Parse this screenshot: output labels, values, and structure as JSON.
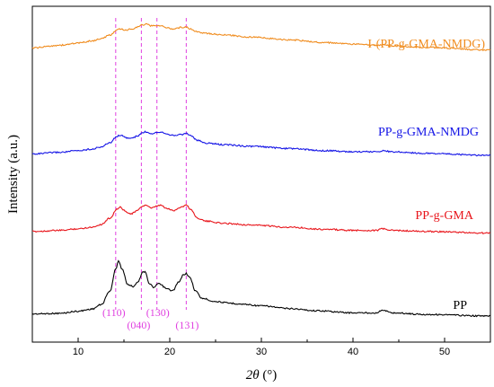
{
  "chart_data": {
    "type": "line",
    "xlabel": "2θ (°)",
    "ylabel": "Intensity (a.u.)",
    "xlim": [
      5,
      55
    ],
    "x_ticks": [
      "10",
      "20",
      "30",
      "40",
      "50"
    ],
    "grid": false,
    "series": [
      {
        "name": "PP",
        "color": "#000000",
        "points": [
          [
            5,
            0.45
          ],
          [
            8,
            0.5
          ],
          [
            10,
            0.7
          ],
          [
            11.5,
            0.9
          ],
          [
            12.5,
            1.3
          ],
          [
            13.5,
            2.6
          ],
          [
            14.1,
            4.6
          ],
          [
            14.4,
            5.4
          ],
          [
            14.8,
            4.6
          ],
          [
            15.4,
            3.2
          ],
          [
            16.0,
            3.0
          ],
          [
            16.6,
            3.5
          ],
          [
            17.0,
            4.3
          ],
          [
            17.3,
            4.4
          ],
          [
            17.8,
            3.2
          ],
          [
            18.3,
            2.9
          ],
          [
            18.8,
            3.3
          ],
          [
            19.1,
            3.1
          ],
          [
            19.6,
            2.8
          ],
          [
            20.3,
            2.6
          ],
          [
            21.0,
            3.4
          ],
          [
            21.5,
            4.1
          ],
          [
            21.8,
            4.2
          ],
          [
            22.2,
            3.8
          ],
          [
            22.8,
            2.6
          ],
          [
            23.5,
            1.9
          ],
          [
            25,
            1.6
          ],
          [
            26.5,
            1.45
          ],
          [
            28,
            1.35
          ],
          [
            30,
            1.2
          ],
          [
            33,
            0.95
          ],
          [
            36,
            0.75
          ],
          [
            40,
            0.55
          ],
          [
            42.5,
            0.55
          ],
          [
            43.3,
            0.8
          ],
          [
            44.2,
            0.55
          ],
          [
            48,
            0.4
          ],
          [
            55,
            0.25
          ]
        ]
      },
      {
        "name": "PP-g-GMA",
        "color": "#e8141a",
        "points": [
          [
            5,
            0.35
          ],
          [
            8,
            0.45
          ],
          [
            10,
            0.6
          ],
          [
            11.5,
            0.75
          ],
          [
            12.5,
            1.0
          ],
          [
            13.5,
            1.6
          ],
          [
            14.2,
            2.4
          ],
          [
            14.6,
            2.6
          ],
          [
            15.2,
            2.2
          ],
          [
            15.8,
            2.0
          ],
          [
            16.5,
            2.3
          ],
          [
            17.0,
            2.7
          ],
          [
            17.4,
            2.8
          ],
          [
            18.0,
            2.5
          ],
          [
            18.6,
            2.7
          ],
          [
            19.0,
            2.8
          ],
          [
            19.6,
            2.5
          ],
          [
            20.4,
            2.3
          ],
          [
            21.2,
            2.6
          ],
          [
            21.8,
            2.8
          ],
          [
            22.3,
            2.4
          ],
          [
            23.0,
            1.6
          ],
          [
            24.0,
            1.3
          ],
          [
            26,
            1.1
          ],
          [
            29,
            0.95
          ],
          [
            33,
            0.75
          ],
          [
            37,
            0.55
          ],
          [
            40,
            0.45
          ],
          [
            42.5,
            0.45
          ],
          [
            43.3,
            0.6
          ],
          [
            44.2,
            0.45
          ],
          [
            48,
            0.35
          ],
          [
            55,
            0.2
          ]
        ]
      },
      {
        "name": "PP-g-GMA-NMDG",
        "color": "#1414e6",
        "points": [
          [
            5,
            0.3
          ],
          [
            8,
            0.45
          ],
          [
            10,
            0.6
          ],
          [
            11.5,
            0.75
          ],
          [
            12.5,
            0.95
          ],
          [
            13.5,
            1.35
          ],
          [
            14.2,
            1.9
          ],
          [
            14.6,
            2.05
          ],
          [
            15.2,
            1.8
          ],
          [
            15.8,
            1.75
          ],
          [
            16.5,
            1.95
          ],
          [
            17.0,
            2.25
          ],
          [
            17.4,
            2.35
          ],
          [
            18.0,
            2.2
          ],
          [
            18.6,
            2.3
          ],
          [
            19.0,
            2.35
          ],
          [
            19.6,
            2.2
          ],
          [
            20.4,
            2.0
          ],
          [
            21.2,
            2.1
          ],
          [
            21.8,
            2.2
          ],
          [
            22.3,
            2.0
          ],
          [
            23.0,
            1.55
          ],
          [
            24.0,
            1.3
          ],
          [
            26,
            1.15
          ],
          [
            29,
            1.0
          ],
          [
            33,
            0.8
          ],
          [
            37,
            0.6
          ],
          [
            40,
            0.5
          ],
          [
            42.5,
            0.5
          ],
          [
            43.3,
            0.6
          ],
          [
            44.2,
            0.5
          ],
          [
            48,
            0.35
          ],
          [
            55,
            0.15
          ]
        ]
      },
      {
        "name": "I-(PP-g-GMA-NMDG)",
        "color": "#f08c1e",
        "points": [
          [
            5,
            0.3
          ],
          [
            8,
            0.55
          ],
          [
            10,
            0.75
          ],
          [
            11.5,
            0.95
          ],
          [
            12.5,
            1.15
          ],
          [
            13.5,
            1.5
          ],
          [
            14.2,
            1.95
          ],
          [
            14.6,
            2.05
          ],
          [
            15.2,
            1.95
          ],
          [
            15.8,
            2.05
          ],
          [
            16.5,
            2.25
          ],
          [
            17.0,
            2.45
          ],
          [
            17.4,
            2.5
          ],
          [
            18.0,
            2.35
          ],
          [
            18.6,
            2.4
          ],
          [
            19.0,
            2.35
          ],
          [
            19.6,
            2.2
          ],
          [
            20.4,
            2.05
          ],
          [
            21.2,
            2.2
          ],
          [
            21.8,
            2.25
          ],
          [
            22.3,
            2.05
          ],
          [
            23.0,
            1.8
          ],
          [
            24.0,
            1.65
          ],
          [
            26,
            1.5
          ],
          [
            29,
            1.3
          ],
          [
            33,
            1.05
          ],
          [
            37,
            0.8
          ],
          [
            40,
            0.65
          ],
          [
            42.5,
            0.55
          ],
          [
            43.3,
            0.6
          ],
          [
            44.2,
            0.5
          ],
          [
            48,
            0.35
          ],
          [
            55,
            0.1
          ]
        ]
      }
    ],
    "peak_markers": [
      {
        "x": 14.1,
        "label": "(110)"
      },
      {
        "x": 16.9,
        "label": "(040)"
      },
      {
        "x": 18.6,
        "label": "(130)"
      },
      {
        "x": 21.8,
        "label": "(131)"
      }
    ],
    "marker_color": "#e040e0"
  }
}
